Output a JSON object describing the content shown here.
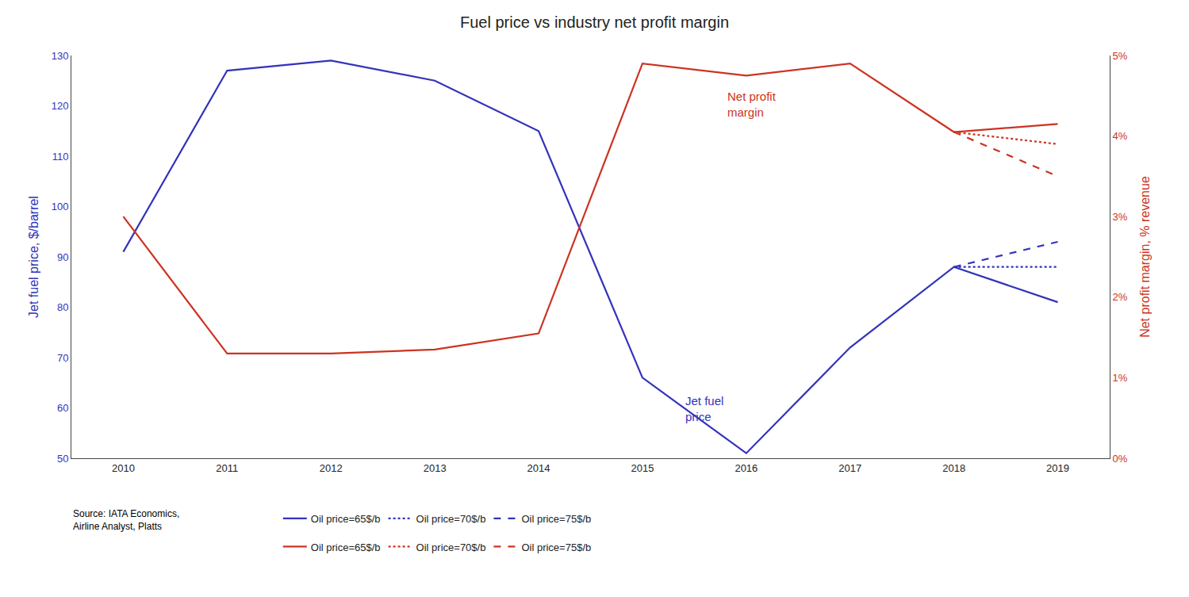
{
  "chart_data": {
    "type": "line",
    "title": "Fuel price vs industry net profit margin",
    "ylabel": "Jet fuel price, $/barrel",
    "y2label": "Net profit margin, % revenue",
    "xlim": [
      2009.5,
      2019.5
    ],
    "xticks": [
      2010,
      2011,
      2012,
      2013,
      2014,
      2015,
      2016,
      2017,
      2018,
      2019
    ],
    "ylim": [
      50,
      130
    ],
    "yticks": [
      50,
      60,
      70,
      80,
      90,
      100,
      110,
      120,
      130
    ],
    "y2lim": [
      0,
      5
    ],
    "y2ticks": [
      {
        "value": 0,
        "label": "0%"
      },
      {
        "value": 1,
        "label": "1%"
      },
      {
        "value": 2,
        "label": "2%"
      },
      {
        "value": 3,
        "label": "3%"
      },
      {
        "value": 4,
        "label": "4%"
      },
      {
        "value": 5,
        "label": "5%"
      }
    ],
    "grid": false,
    "series": [
      {
        "name": "Oil price=65$/b",
        "color": "#3333bb",
        "line_style": "solid",
        "axis": "y",
        "x": [
          2010,
          2011,
          2012,
          2013,
          2014,
          2015,
          2016,
          2017,
          2018,
          2019
        ],
        "values": [
          91,
          127,
          129,
          125,
          115,
          66,
          51,
          72,
          88,
          81
        ]
      },
      {
        "name": "Oil price=70$/b",
        "color": "#3333bb",
        "line_style": "dotted",
        "axis": "y",
        "x": [
          2018,
          2019
        ],
        "values": [
          88,
          88
        ]
      },
      {
        "name": "Oil price=75$/b",
        "color": "#3333bb",
        "line_style": "dashed",
        "axis": "y",
        "x": [
          2018,
          2019
        ],
        "values": [
          88,
          93
        ]
      },
      {
        "name": "Oil price=65$/b",
        "color": "#cc3322",
        "line_style": "solid",
        "axis": "y2",
        "x": [
          2010,
          2011,
          2012,
          2013,
          2014,
          2015,
          2016,
          2017,
          2018,
          2019
        ],
        "values": [
          3.0,
          1.3,
          1.3,
          1.35,
          1.55,
          4.9,
          4.75,
          4.9,
          4.05,
          4.15
        ]
      },
      {
        "name": "Oil price=70$/b",
        "color": "#cc3322",
        "line_style": "dotted",
        "axis": "y2",
        "x": [
          2018,
          2019
        ],
        "values": [
          4.05,
          3.9
        ]
      },
      {
        "name": "Oil price=75$/b",
        "color": "#cc3322",
        "line_style": "dashed",
        "axis": "y2",
        "x": [
          2018,
          2019
        ],
        "values": [
          4.05,
          3.5
        ]
      }
    ],
    "annotations": [
      {
        "text": "Jet fuel\nprice",
        "x": 2015.4,
        "y": 63,
        "axis": "y",
        "color": "#3333bb"
      },
      {
        "text": "Net profit\nmargin",
        "x": 2015.8,
        "y": 4.6,
        "axis": "y2",
        "color": "#cc3322"
      }
    ],
    "source": "Source: IATA Economics,\nAirline Analyst, Platts"
  }
}
